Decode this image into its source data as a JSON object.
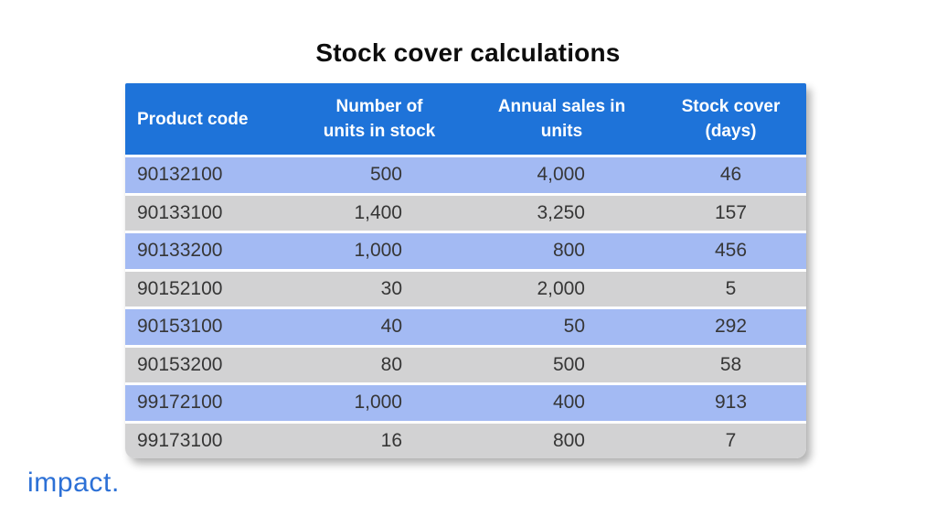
{
  "title": "Stock cover calculations",
  "logo": {
    "text": "impact."
  },
  "table": {
    "columns": [
      {
        "label": "Product code"
      },
      {
        "label": "Number of\nunits in stock"
      },
      {
        "label": "Annual sales in\nunits"
      },
      {
        "label": "Stock cover\n(days)"
      }
    ],
    "rows": [
      [
        "90132100",
        "500",
        "4,000",
        "46"
      ],
      [
        "90133100",
        "1,400",
        "3,250",
        "157"
      ],
      [
        "90133200",
        "1,000",
        "800",
        "456"
      ],
      [
        "90152100",
        "30",
        "2,000",
        "5"
      ],
      [
        "90153100",
        "40",
        "50",
        "292"
      ],
      [
        "90153200",
        "80",
        "500",
        "58"
      ],
      [
        "99172100",
        "1,000",
        "400",
        "913"
      ],
      [
        "99173100",
        "16",
        "800",
        "7"
      ]
    ]
  },
  "colors": {
    "header_bg": "#1e73d9",
    "row_blue": "#a3baf3",
    "row_gray": "#d2d2d3",
    "header_text": "#ffffff",
    "body_text": "#363636",
    "logo_blue": "#2c70d6"
  },
  "chart_data": {
    "type": "table",
    "title": "Stock cover calculations",
    "columns": [
      "Product code",
      "Number of units in stock",
      "Annual sales in units",
      "Stock cover (days)"
    ],
    "rows": [
      [
        "90132100",
        500,
        4000,
        46
      ],
      [
        "90133100",
        1400,
        3250,
        157
      ],
      [
        "90133200",
        1000,
        800,
        456
      ],
      [
        "90152100",
        30,
        2000,
        5
      ],
      [
        "90153100",
        40,
        50,
        292
      ],
      [
        "90153200",
        80,
        500,
        58
      ],
      [
        "99172100",
        1000,
        400,
        913
      ],
      [
        "99173100",
        16,
        800,
        7
      ]
    ]
  }
}
